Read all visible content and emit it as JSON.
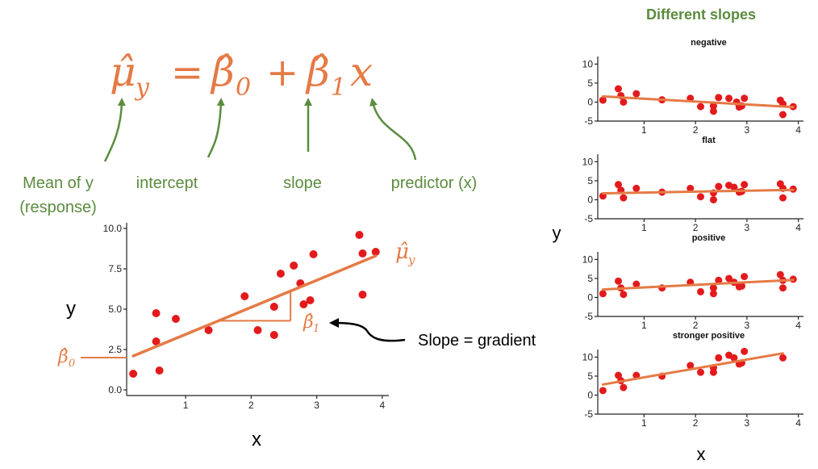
{
  "equation": {
    "lhs_symbol": "μ̂",
    "lhs_sub": "y",
    "equals": "=",
    "beta0_symbol": "β̂",
    "beta0_sub": "0",
    "plus": "+",
    "beta1_symbol": "β̂",
    "beta1_sub": "1",
    "x_term": "x"
  },
  "term_labels": {
    "mean_line1": "Mean of y",
    "mean_line2": "(response)",
    "intercept": "intercept",
    "slope": "slope",
    "predictor": "predictor (x)"
  },
  "main_plot": {
    "xlabel": "x",
    "ylabel": "y",
    "line_label_symbol": "μ̂",
    "line_label_sub": "y",
    "intercept_label_symbol": "β̂",
    "intercept_label_sub": "0",
    "slope_label_symbol": "β̂",
    "slope_label_sub": "1",
    "callout": "Slope = gradient"
  },
  "right_panel": {
    "title": "Different slopes",
    "xlabel": "x",
    "ylabel": "y"
  },
  "colors": {
    "green": "#5b8c3e",
    "orange": "#e57a45",
    "point": "#e31a1c",
    "line": "#e57a45"
  },
  "chart_data": [
    {
      "type": "scatter",
      "title": "",
      "xlabel": "x",
      "ylabel": "y",
      "xlim": [
        0.1,
        4.1
      ],
      "ylim": [
        -0.35,
        10.35
      ],
      "xticks": [
        1,
        2,
        3,
        4
      ],
      "yticks": [
        "0.0",
        "2.5",
        "5.0",
        "7.5",
        "10.0"
      ],
      "ytick_values": [
        0,
        2.5,
        5,
        7.5,
        10
      ],
      "points": [
        [
          0.2,
          1.0
        ],
        [
          0.55,
          4.75
        ],
        [
          0.55,
          3.0
        ],
        [
          0.6,
          1.2
        ],
        [
          0.85,
          4.4
        ],
        [
          1.35,
          3.7
        ],
        [
          1.9,
          5.8
        ],
        [
          2.1,
          3.7
        ],
        [
          2.35,
          3.4
        ],
        [
          2.35,
          5.15
        ],
        [
          2.45,
          7.2
        ],
        [
          2.65,
          7.7
        ],
        [
          2.75,
          6.6
        ],
        [
          2.8,
          5.3
        ],
        [
          2.9,
          5.55
        ],
        [
          2.95,
          8.4
        ],
        [
          3.65,
          9.6
        ],
        [
          3.7,
          8.45
        ],
        [
          3.7,
          5.9
        ],
        [
          3.9,
          8.55
        ]
      ],
      "fit": {
        "x0": 0.2,
        "y0": 2.1,
        "x1": 3.9,
        "y1": 8.3
      },
      "slope_triangle": {
        "x0": 1.5,
        "x1": 2.6
      }
    },
    {
      "type": "scatter",
      "title": "negative",
      "xlim": [
        0.1,
        4.1
      ],
      "ylim": [
        -5,
        12
      ],
      "xticks": [
        1,
        2,
        3,
        4
      ],
      "yticks": [
        "10",
        "5",
        "0",
        "-5"
      ],
      "ytick_values": [
        10,
        5,
        0,
        -5
      ],
      "points": [
        [
          0.2,
          0.5
        ],
        [
          0.5,
          3.5
        ],
        [
          0.55,
          1.7
        ],
        [
          0.6,
          0.0
        ],
        [
          0.85,
          2.2
        ],
        [
          1.35,
          0.6
        ],
        [
          1.9,
          1.0
        ],
        [
          2.1,
          -1.2
        ],
        [
          2.35,
          -2.4
        ],
        [
          2.35,
          -1.0
        ],
        [
          2.45,
          1.2
        ],
        [
          2.65,
          1.0
        ],
        [
          2.8,
          0.0
        ],
        [
          2.85,
          -1.3
        ],
        [
          2.9,
          -1.0
        ],
        [
          2.95,
          1.0
        ],
        [
          3.65,
          0.5
        ],
        [
          3.7,
          -0.5
        ],
        [
          3.7,
          -3.3
        ],
        [
          3.9,
          -1.2
        ]
      ],
      "fit": {
        "x0": 0.2,
        "y0": 1.5,
        "x1": 3.9,
        "y1": -1.3
      }
    },
    {
      "type": "scatter",
      "title": "flat",
      "xlim": [
        0.1,
        4.1
      ],
      "ylim": [
        -5,
        12
      ],
      "xticks": [
        1,
        2,
        3,
        4
      ],
      "yticks": [
        "10",
        "5",
        "0",
        "-5"
      ],
      "ytick_values": [
        10,
        5,
        0,
        -5
      ],
      "points": [
        [
          0.2,
          1.0
        ],
        [
          0.5,
          4.0
        ],
        [
          0.55,
          2.5
        ],
        [
          0.6,
          0.5
        ],
        [
          0.85,
          3.0
        ],
        [
          1.35,
          2.0
        ],
        [
          1.9,
          3.0
        ],
        [
          2.1,
          0.8
        ],
        [
          2.35,
          0.0
        ],
        [
          2.35,
          1.8
        ],
        [
          2.45,
          3.5
        ],
        [
          2.65,
          3.8
        ],
        [
          2.75,
          3.3
        ],
        [
          2.85,
          2.0
        ],
        [
          2.9,
          2.2
        ],
        [
          2.95,
          4.0
        ],
        [
          3.65,
          4.2
        ],
        [
          3.7,
          3.0
        ],
        [
          3.7,
          0.5
        ],
        [
          3.9,
          2.8
        ]
      ],
      "fit": {
        "x0": 0.2,
        "y0": 1.7,
        "x1": 3.9,
        "y1": 2.6
      }
    },
    {
      "type": "scatter",
      "title": "positive",
      "xlim": [
        0.1,
        4.1
      ],
      "ylim": [
        -5,
        12
      ],
      "xticks": [
        1,
        2,
        3,
        4
      ],
      "yticks": [
        "10",
        "5",
        "0",
        "-5"
      ],
      "ytick_values": [
        10,
        5,
        0,
        -5
      ],
      "points": [
        [
          0.2,
          1.0
        ],
        [
          0.5,
          4.3
        ],
        [
          0.55,
          2.5
        ],
        [
          0.6,
          0.8
        ],
        [
          0.85,
          3.5
        ],
        [
          1.35,
          2.5
        ],
        [
          1.9,
          4.0
        ],
        [
          2.1,
          1.5
        ],
        [
          2.35,
          1.0
        ],
        [
          2.35,
          2.5
        ],
        [
          2.45,
          4.5
        ],
        [
          2.65,
          5.0
        ],
        [
          2.75,
          4.0
        ],
        [
          2.85,
          2.8
        ],
        [
          2.9,
          3.0
        ],
        [
          2.95,
          5.5
        ],
        [
          3.65,
          6.0
        ],
        [
          3.7,
          4.5
        ],
        [
          3.7,
          2.5
        ],
        [
          3.9,
          4.8
        ]
      ],
      "fit": {
        "x0": 0.2,
        "y0": 2.1,
        "x1": 3.9,
        "y1": 4.6
      }
    },
    {
      "type": "scatter",
      "title": "stronger positive",
      "xlim": [
        0.1,
        4.1
      ],
      "ylim": [
        -5,
        12
      ],
      "xticks": [
        1,
        2,
        3,
        4
      ],
      "yticks": [
        "10",
        "5",
        "0",
        "-5"
      ],
      "ytick_values": [
        10,
        5,
        0,
        -5
      ],
      "points": [
        [
          0.2,
          1.2
        ],
        [
          0.5,
          5.2
        ],
        [
          0.55,
          3.8
        ],
        [
          0.6,
          2.0
        ],
        [
          0.85,
          5.2
        ],
        [
          1.35,
          5.0
        ],
        [
          1.9,
          7.8
        ],
        [
          2.1,
          6.0
        ],
        [
          2.35,
          6.0
        ],
        [
          2.35,
          7.2
        ],
        [
          2.45,
          9.8
        ],
        [
          2.65,
          10.5
        ],
        [
          2.75,
          9.8
        ],
        [
          2.85,
          8.2
        ],
        [
          2.9,
          8.5
        ],
        [
          2.95,
          11.5
        ],
        [
          3.7,
          9.8
        ]
      ],
      "fit": {
        "x0": 0.2,
        "y0": 2.8,
        "x1": 3.7,
        "y1": 11.0
      }
    }
  ]
}
